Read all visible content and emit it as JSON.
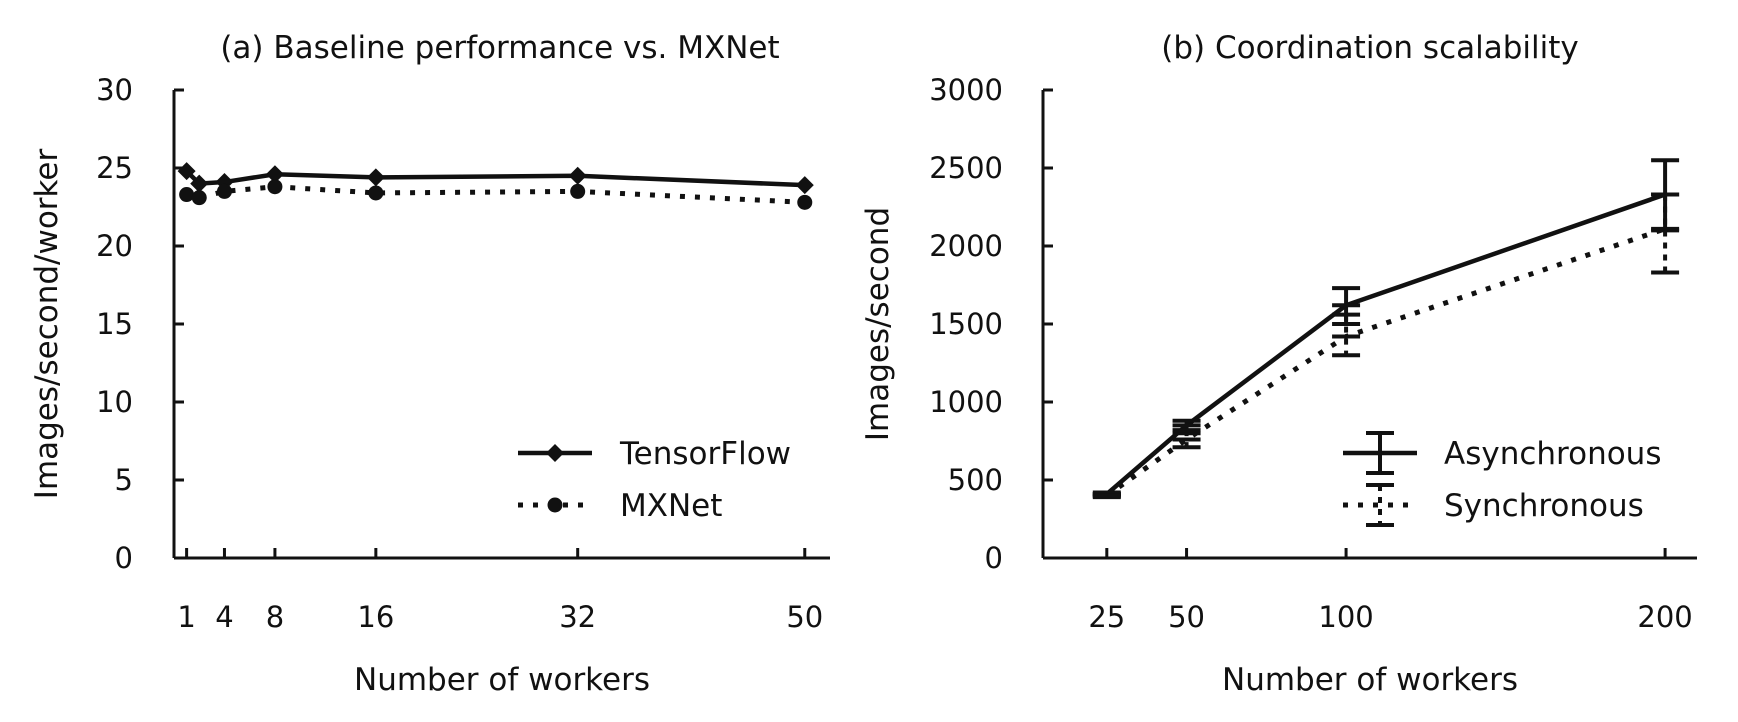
{
  "chart_data": [
    {
      "type": "line",
      "title": "(a) Baseline performance vs. MXNet",
      "xlabel": "Number of workers",
      "ylabel": "Images/second/worker",
      "x_ticks": [
        1,
        4,
        8,
        16,
        32,
        50
      ],
      "y_ticks": [
        0,
        5,
        10,
        15,
        20,
        25,
        30
      ],
      "xlim": [
        0,
        52
      ],
      "ylim": [
        0,
        30
      ],
      "legend_position": "bottom-right",
      "series": [
        {
          "name": "TensorFlow",
          "style": "solid",
          "marker": "diamond",
          "x": [
            1,
            2,
            4,
            8,
            16,
            32,
            50
          ],
          "y": [
            24.8,
            24.0,
            24.1,
            24.6,
            24.4,
            24.5,
            23.9
          ]
        },
        {
          "name": "MXNet",
          "style": "dotted",
          "marker": "circle",
          "x": [
            1,
            2,
            4,
            8,
            16,
            32,
            50
          ],
          "y": [
            23.3,
            23.1,
            23.5,
            23.8,
            23.4,
            23.5,
            22.8
          ]
        }
      ]
    },
    {
      "type": "line",
      "title": "(b) Coordination scalability",
      "xlabel": "Number of workers",
      "ylabel": "Images/second",
      "x_ticks": [
        25,
        50,
        100,
        200
      ],
      "y_ticks": [
        0,
        500,
        1000,
        1500,
        2000,
        2500,
        3000
      ],
      "xlim": [
        5,
        210
      ],
      "ylim": [
        0,
        3000
      ],
      "legend_position": "bottom-right",
      "series": [
        {
          "name": "Asynchronous",
          "style": "solid",
          "marker": "errorbar",
          "x": [
            25,
            50,
            100,
            200
          ],
          "y": [
            410,
            850,
            1620,
            2330
          ],
          "err_low": [
            400,
            800,
            1500,
            2100
          ],
          "err_high": [
            420,
            880,
            1730,
            2550
          ]
        },
        {
          "name": "Synchronous",
          "style": "dotted",
          "marker": "errorbar",
          "x": [
            25,
            50,
            100,
            200
          ],
          "y": [
            400,
            760,
            1420,
            2110
          ],
          "err_low": [
            390,
            710,
            1300,
            1830
          ],
          "err_high": [
            410,
            820,
            1560,
            2330
          ]
        }
      ]
    }
  ]
}
